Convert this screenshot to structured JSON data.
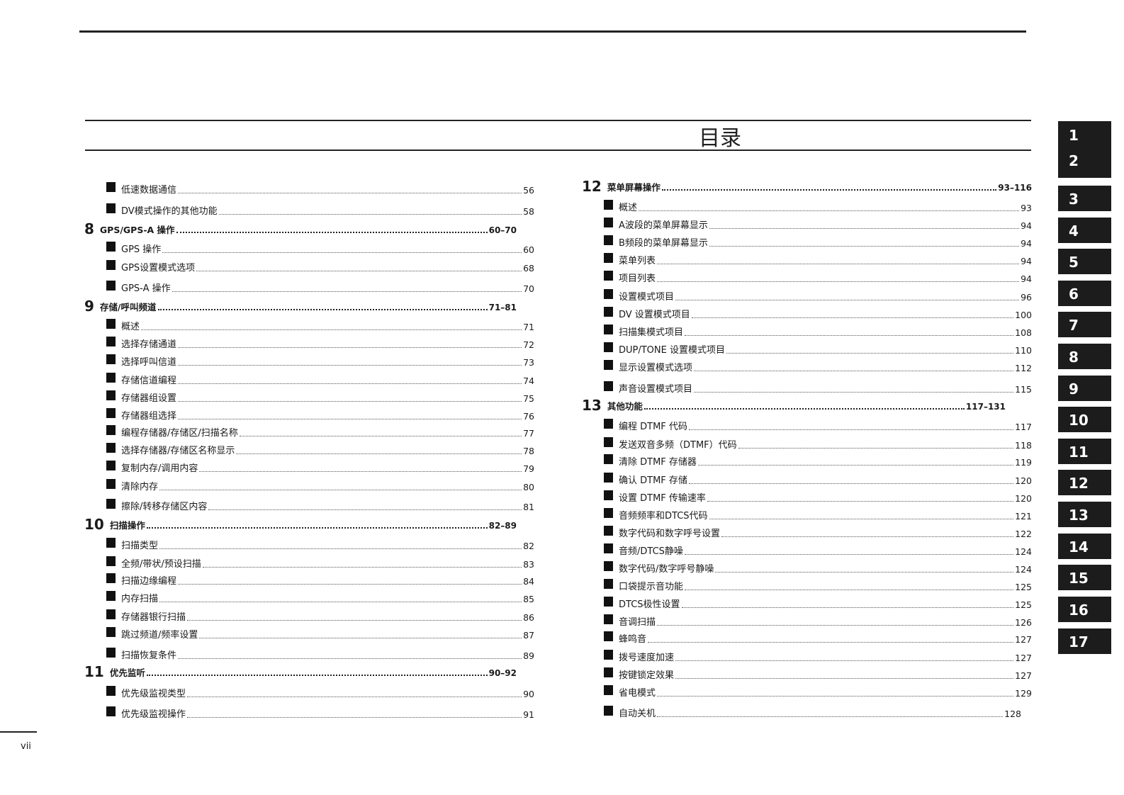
{
  "title": "目录",
  "footer_page": "vii",
  "side_tabs": [
    "1",
    "2",
    "3",
    "4",
    "5",
    "6",
    "7",
    "8",
    "9",
    "10",
    "11",
    "12",
    "13",
    "14",
    "15",
    "16",
    "17"
  ],
  "left_column": [
    {
      "type": "item",
      "label": "低速数据通信",
      "page": "56"
    },
    {
      "type": "item",
      "label": "DV模式操作的其他功能",
      "page": "58"
    },
    {
      "type": "chapter",
      "number": "8",
      "label": "GPS/GPS-A 操作",
      "page": "60–70"
    },
    {
      "type": "item",
      "label": "GPS 操作",
      "page": "60"
    },
    {
      "type": "item",
      "label": "GPS设置模式选项",
      "page": "68"
    },
    {
      "type": "item",
      "label": "GPS-A 操作",
      "page": "70"
    },
    {
      "type": "chapter",
      "number": "9",
      "label": "存储/呼叫频道",
      "page": "71–81"
    },
    {
      "type": "item",
      "label": "概述",
      "page": "71"
    },
    {
      "type": "item",
      "label": "选择存储通道",
      "page": "72"
    },
    {
      "type": "item",
      "label": "选择呼叫信道",
      "page": "73"
    },
    {
      "type": "item",
      "label": "存储信道编程",
      "page": "74"
    },
    {
      "type": "item",
      "label": "存储器组设置",
      "page": "75"
    },
    {
      "type": "item",
      "label": "存储器组选择",
      "page": "76"
    },
    {
      "type": "item",
      "label": "编程存储器/存储区/扫描名称",
      "page": "77"
    },
    {
      "type": "item",
      "label": "选择存储器/存储区名称显示",
      "page": "78"
    },
    {
      "type": "item",
      "label": "复制内存/调用内容",
      "page": "79"
    },
    {
      "type": "item",
      "label": "清除内存",
      "page": "80"
    },
    {
      "type": "item",
      "label": "擦除/转移存储区内容",
      "page": "81"
    },
    {
      "type": "chapter",
      "number": "10",
      "label": "扫描操作",
      "page": "82–89"
    },
    {
      "type": "item",
      "label": "扫描类型",
      "page": "82"
    },
    {
      "type": "item",
      "label": "全频/带状/预设扫描",
      "page": "83"
    },
    {
      "type": "item",
      "label": "扫描边缘编程",
      "page": "84"
    },
    {
      "type": "item",
      "label": "内存扫描",
      "page": "85"
    },
    {
      "type": "item",
      "label": "存储器银行扫描",
      "page": "86"
    },
    {
      "type": "item",
      "label": "跳过频道/频率设置",
      "page": "87"
    },
    {
      "type": "item",
      "label": "扫描恢复条件",
      "page": "89"
    },
    {
      "type": "chapter",
      "number": "11",
      "label": "优先监听",
      "page": "90–92"
    },
    {
      "type": "item",
      "label": "优先级监视类型",
      "page": "90"
    },
    {
      "type": "item",
      "label": "优先级监视操作",
      "page": "91"
    }
  ],
  "right_column": [
    {
      "type": "chapter",
      "number": "12",
      "label": "菜单屏幕操作",
      "page": "93–116"
    },
    {
      "type": "item",
      "label": "概述",
      "page": "93"
    },
    {
      "type": "item",
      "label": "A波段的菜单屏幕显示",
      "page": "94"
    },
    {
      "type": "item",
      "label": "B频段的菜单屏幕显示",
      "page": "94"
    },
    {
      "type": "item",
      "label": "菜单列表",
      "page": "94"
    },
    {
      "type": "item",
      "label": "项目列表",
      "page": "94"
    },
    {
      "type": "item",
      "label": "设置模式项目",
      "page": "96"
    },
    {
      "type": "item",
      "label": "DV 设置模式项目",
      "page": "100"
    },
    {
      "type": "item",
      "label": "扫描集模式项目",
      "page": "108"
    },
    {
      "type": "item",
      "label": "DUP/TONE 设置模式项目",
      "page": "110"
    },
    {
      "type": "item",
      "label": "显示设置模式选项",
      "page": "112"
    },
    {
      "type": "item",
      "label": "声音设置模式项目",
      "page": "115"
    },
    {
      "type": "chapter",
      "number": "13",
      "label": "其他功能",
      "page": "117–131"
    },
    {
      "type": "item",
      "label": "编程 DTMF 代码",
      "page": "117"
    },
    {
      "type": "item",
      "label": "发送双音多频（DTMF）代码",
      "page": "118"
    },
    {
      "type": "item",
      "label": "清除 DTMF 存储器",
      "page": "119"
    },
    {
      "type": "item",
      "label": "确认 DTMF 存储",
      "page": "120"
    },
    {
      "type": "item",
      "label": "设置 DTMF 传输速率",
      "page": "120"
    },
    {
      "type": "item",
      "label": "音频频率和DTCS代码",
      "page": "121"
    },
    {
      "type": "item",
      "label": "数字代码和数字呼号设置",
      "page": "122"
    },
    {
      "type": "item",
      "label": "音频/DTCS静噪",
      "page": "124"
    },
    {
      "type": "item",
      "label": "数字代码/数字呼号静噪",
      "page": "124"
    },
    {
      "type": "item",
      "label": "口袋提示音功能",
      "page": "125"
    },
    {
      "type": "item",
      "label": "DTCS极性设置",
      "page": "125"
    },
    {
      "type": "item",
      "label": "音调扫描",
      "page": "126"
    },
    {
      "type": "item",
      "label": "蜂鸣音",
      "page": "127"
    },
    {
      "type": "item",
      "label": "拨号速度加速",
      "page": "127"
    },
    {
      "type": "item",
      "label": "按键锁定效果",
      "page": "127"
    },
    {
      "type": "item",
      "label": "省电模式",
      "page": "129"
    },
    {
      "type": "item",
      "label": "自动关机",
      "page": "128"
    }
  ]
}
